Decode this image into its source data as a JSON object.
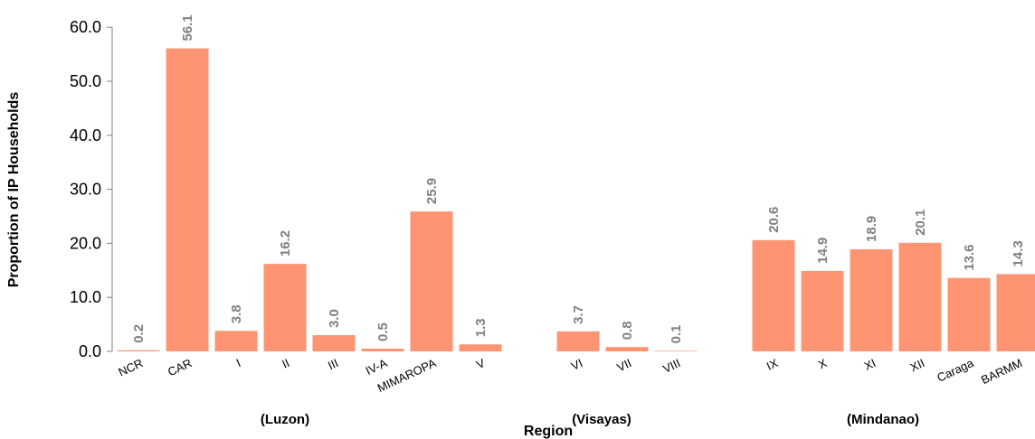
{
  "chart_data": {
    "type": "bar",
    "ylabel": "Proportion of IP Households",
    "xlabel": "Region",
    "ylim": [
      0,
      60
    ],
    "yticks": [
      "0.0",
      "10.0",
      "20.0",
      "30.0",
      "40.0",
      "50.0",
      "60.0"
    ],
    "grid": false,
    "bar_color": "#FF9473",
    "data_label_color": "#808080",
    "categories": [
      "NCR",
      "CAR",
      "I",
      "II",
      "III",
      "IV-A",
      "MIMAROPA",
      "V",
      "VI",
      "VII",
      "VIII",
      "IX",
      "X",
      "XI",
      "XII",
      "Caraga",
      "BARMM"
    ],
    "values": [
      0.2,
      56.1,
      3.8,
      16.2,
      3.0,
      0.5,
      25.9,
      1.3,
      3.7,
      0.8,
      0.1,
      20.6,
      14.9,
      18.9,
      20.1,
      13.6,
      14.3
    ],
    "data_labels": [
      "0.2",
      "56.1",
      "3.8",
      "16.2",
      "3.0",
      "0.5",
      "25.9",
      "1.3",
      "3.7",
      "0.8",
      "0.1",
      "20.6",
      "14.9",
      "18.9",
      "20.1",
      "13.6",
      "14.3"
    ],
    "groups": [
      {
        "label": "(Luzon)",
        "categories": [
          "NCR",
          "CAR",
          "I",
          "II",
          "III",
          "IV-A",
          "MIMAROPA",
          "V"
        ]
      },
      {
        "label": "(Visayas)",
        "categories": [
          "VI",
          "VII",
          "VIII"
        ]
      },
      {
        "label": "(Mindanao)",
        "categories": [
          "IX",
          "X",
          "XI",
          "XII",
          "Caraga",
          "BARMM"
        ]
      }
    ]
  }
}
